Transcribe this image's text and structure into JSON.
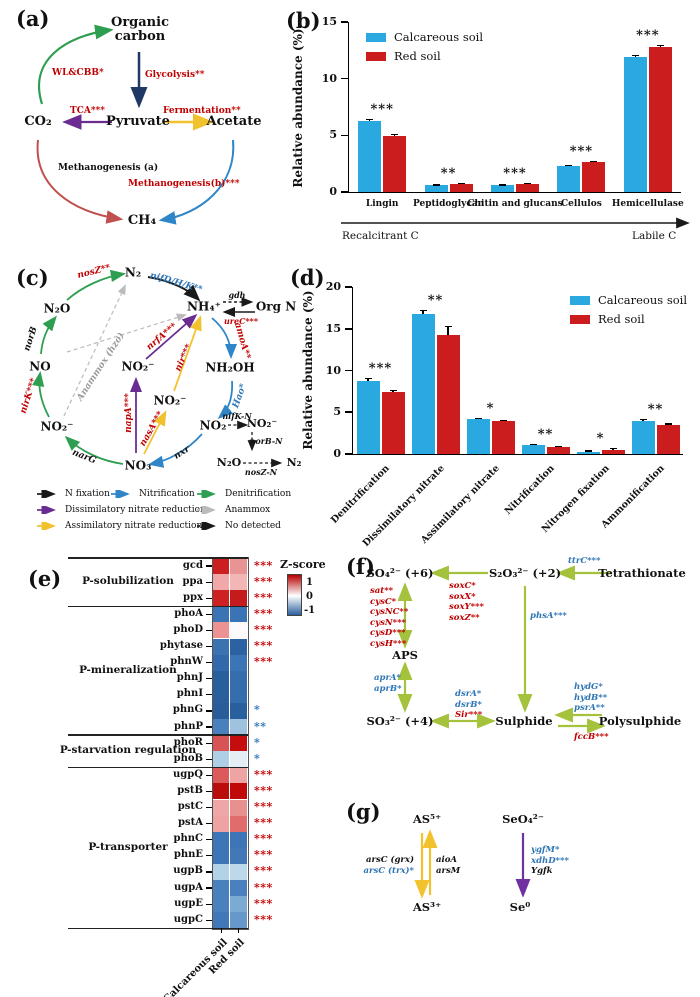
{
  "figure": {
    "background": "#FFFFFF"
  },
  "colors": {
    "calcareous_blue": "#29A9E0",
    "red_soil": "#CC1D1E",
    "sig_red": "#C00000",
    "sig_blue": "#2E75B6",
    "green_arrow": "#2E9E50",
    "navy_arrow": "#1F3864",
    "purple_arrow": "#6A2C91",
    "yellow_arrow": "#F2C12E",
    "brick_arrow": "#C0504D",
    "blue_arrow": "#2E86C8",
    "olive_arrow": "#A4C23C",
    "violet_arrow": "#7030A0",
    "anammox_gray": "#BBBBBB"
  },
  "panel_a": {
    "label": "(a)",
    "nodes": {
      "organic": "Organic\ncarbon",
      "pyruvate": "Pyruvate",
      "acetate": "Acetate",
      "co2": "CO₂",
      "ch4": "CH₄"
    },
    "edges": {
      "wl_cbb": "WL&CBB*",
      "glycolysis": "Glycolysis**",
      "tca": "TCA***",
      "fermentation": "Fermentation**",
      "methanogenesis_a": "Methanogenesis (a)",
      "methanogenesis_b": "Methanogenesis(b)***"
    }
  },
  "panel_b": {
    "label": "(b)"
  },
  "panel_c": {
    "label": "(c)",
    "nodes": {
      "n2": "N₂",
      "n2o": "N₂O",
      "no": "NO",
      "no2_left": "NO₂⁻",
      "no3": "NO₃",
      "no2_center": "NO₂⁻",
      "no2_center2": "NO₂⁻",
      "nh4": "NH₄⁺",
      "org_n": "Org N",
      "nh2oh": "NH₂OH",
      "no2_right": "NO₂",
      "no2_right2": "NO₂⁻",
      "n2o_small": "N₂O",
      "n2_small": "N₂"
    },
    "genes": {
      "nosZ": "nosZ**",
      "norB": "norB",
      "nirK": "nirK***",
      "narG": "narG",
      "nxr": "nxr",
      "hao": "Hao*",
      "amoA": "amoA**",
      "nifDHK": "nifD/H/K**",
      "gdh": "gdh",
      "ureC": "ureC***",
      "nrfA": "nrfA***",
      "nir": "nir***",
      "napA": "napA***",
      "nasA": "nasA***",
      "anammox": "Anammox (hzo)",
      "nifK_N": "nifK-N",
      "norB_N": "norB-N",
      "nosZ_N": "nosZ-N"
    },
    "legend": [
      {
        "label": "N fixation",
        "color": "#1A1A1A",
        "style": "solid"
      },
      {
        "label": "Nitrification",
        "color": "#2E86C8",
        "style": "solid"
      },
      {
        "label": "Denitrification",
        "color": "#2E9E50",
        "style": "solid"
      },
      {
        "label": "Dissimilatory nitrate reduction",
        "color": "#6A2C91",
        "style": "solid"
      },
      {
        "label": "Anammox",
        "color": "#BBBBBB",
        "style": "dashed"
      },
      {
        "label": "Assimilatory nitrate reduction",
        "color": "#F2C12E",
        "style": "solid"
      },
      {
        "label": "No detected",
        "color": "#1A1A1A",
        "style": "dashed"
      }
    ]
  },
  "panel_d": {
    "label": "(d)"
  },
  "panel_e": {
    "label": "(e)"
  },
  "panel_f": {
    "label": "(f)",
    "nodes": {
      "so4": "SO₄²⁻ (+6)",
      "s2o3": "S₂O₃²⁻ (+2)",
      "tetrathionate": "Tetrathionate",
      "aps": "APS",
      "so3": "SO₃²⁻ (+4)",
      "sulphide": "Sulphide",
      "polysulphide": "Polysulphide"
    },
    "genes": {
      "ttr": [
        {
          "t": "ttrC***",
          "c": "blue"
        }
      ],
      "sox": [
        {
          "t": "soxC*",
          "c": "red"
        },
        {
          "t": "soxX*",
          "c": "red"
        },
        {
          "t": "soxY***",
          "c": "red"
        },
        {
          "t": "soxZ**",
          "c": "red"
        }
      ],
      "phs": [
        {
          "t": "phsA***",
          "c": "blue"
        }
      ],
      "sat_cys": [
        {
          "t": "sat**",
          "c": "red"
        },
        {
          "t": "cysC*",
          "c": "red"
        },
        {
          "t": "cysNC**",
          "c": "red"
        },
        {
          "t": "cysN***",
          "c": "red"
        },
        {
          "t": "cysD***",
          "c": "red"
        },
        {
          "t": "cysH***",
          "c": "red"
        }
      ],
      "apr": [
        {
          "t": "aprA*",
          "c": "blue"
        },
        {
          "t": "aprB*",
          "c": "blue"
        }
      ],
      "dsr": [
        {
          "t": "dsrA*",
          "c": "blue"
        },
        {
          "t": "dsrB*",
          "c": "blue"
        },
        {
          "t": "Sir***",
          "c": "red"
        }
      ],
      "hyd": [
        {
          "t": "hydG*",
          "c": "blue"
        },
        {
          "t": "hydB**",
          "c": "blue"
        },
        {
          "t": "psrA**",
          "c": "blue"
        }
      ],
      "fcc": [
        {
          "t": "fccB***",
          "c": "red"
        }
      ]
    }
  },
  "panel_g": {
    "label": "(g)",
    "nodes": {
      "as5": "AS⁵⁺",
      "as3": "AS³⁺",
      "seo4": "SeO₄²⁻",
      "se0": "Se⁰"
    },
    "genes": {
      "ars_left": [
        {
          "t": "arsC (grx)",
          "c": "blk"
        },
        {
          "t": "arsC (trx)*",
          "c": "blue"
        }
      ],
      "ars_right": [
        {
          "t": "aioA",
          "c": "blk"
        },
        {
          "t": "arsM",
          "c": "blk"
        }
      ],
      "se": [
        {
          "t": "ygfM*",
          "c": "blue"
        },
        {
          "t": "xdhD***",
          "c": "blue"
        },
        {
          "t": "Ygfk",
          "c": "blk"
        }
      ]
    }
  },
  "chart_data": [
    {
      "id": "b",
      "type": "bar",
      "ylabel": "Relative abundance (%)",
      "ylim": [
        0,
        15
      ],
      "yticks": [
        0,
        5,
        10,
        15
      ],
      "categories": [
        "Lingin",
        "Peptidoglycan",
        "Chitin and glucans",
        "Cellulos",
        "Hemicellulase"
      ],
      "series": [
        {
          "name": "Calcareous soil",
          "color": "#29A9E0",
          "values": [
            6.3,
            0.6,
            0.6,
            2.3,
            11.9
          ],
          "errors": [
            0.15,
            0.06,
            0.06,
            0.1,
            0.15
          ]
        },
        {
          "name": "Red soil",
          "color": "#CC1D1E",
          "values": [
            4.9,
            0.7,
            0.75,
            2.65,
            12.8
          ],
          "errors": [
            0.2,
            0.06,
            0.06,
            0.1,
            0.15
          ]
        }
      ],
      "significance": [
        "***",
        "**",
        "***",
        "***",
        "***"
      ],
      "x_axis_annotation": {
        "left": "Recalcitrant C",
        "right": "Labile C"
      },
      "legend_position": "top-left",
      "grid": false
    },
    {
      "id": "d",
      "type": "bar",
      "ylabel": "Relative abundance (%)",
      "ylim": [
        0,
        20
      ],
      "yticks": [
        0,
        5,
        10,
        15,
        20
      ],
      "categories": [
        "Denitrification",
        "Dissimilatory nitrate",
        "Assimilatory nitrate",
        "Nitrification",
        "Nitrogen fixation",
        "Ammonification"
      ],
      "series": [
        {
          "name": "Calcareous soil",
          "color": "#29A9E0",
          "values": [
            8.8,
            16.8,
            4.2,
            1.1,
            0.3,
            4.0
          ],
          "errors": [
            0.25,
            0.45,
            0.12,
            0.12,
            0.1,
            0.2
          ]
        },
        {
          "name": "Red soil",
          "color": "#CC1D1E",
          "values": [
            7.4,
            14.2,
            3.9,
            0.8,
            0.5,
            3.5
          ],
          "errors": [
            0.3,
            1.1,
            0.15,
            0.12,
            0.18,
            0.15
          ]
        }
      ],
      "significance": [
        "***",
        "**",
        "*",
        "**",
        "*",
        "**"
      ],
      "legend_position": "top-right",
      "grid": false
    },
    {
      "id": "e",
      "type": "heatmap",
      "columns": [
        "Calcareous soil",
        "Red soil"
      ],
      "legend": {
        "title": "Z-score",
        "ticks": [
          "1",
          "0",
          "-1"
        ],
        "max_color": "#B60000",
        "mid_color": "#FFFFFF",
        "min_color": "#2B5F9E"
      },
      "groups": [
        {
          "name": "P-solubilization",
          "rows": [
            {
              "gene": "gcd",
              "z": [
                1.3,
                0.4
              ],
              "colors": [
                "#CC2020",
                "#E89494"
              ],
              "sig": "***",
              "sig_color": "red"
            },
            {
              "gene": "ppa",
              "z": [
                0.35,
                0.28
              ],
              "colors": [
                "#F0A8A8",
                "#F2B6B6"
              ],
              "sig": "***",
              "sig_color": "red"
            },
            {
              "gene": "ppx",
              "z": [
                1.3,
                1.4
              ],
              "colors": [
                "#CE2121",
                "#C41C1C"
              ],
              "sig": "***",
              "sig_color": "red"
            }
          ]
        },
        {
          "name": "P-mineralization",
          "rows": [
            {
              "gene": "phoA",
              "z": [
                -0.85,
                -0.85
              ],
              "colors": [
                "#3B74B4",
                "#3B74B4"
              ],
              "sig": "***",
              "sig_color": "red"
            },
            {
              "gene": "phoD",
              "z": [
                0.45,
                0.02
              ],
              "colors": [
                "#EC9292",
                "#FCFAFA"
              ],
              "sig": "***",
              "sig_color": "red"
            },
            {
              "gene": "phytase",
              "z": [
                -0.85,
                -1.05
              ],
              "colors": [
                "#3B72B0",
                "#2C62A2"
              ],
              "sig": "***",
              "sig_color": "red"
            },
            {
              "gene": "phnW",
              "z": [
                -0.95,
                -0.85
              ],
              "colors": [
                "#3269AA",
                "#3C75B5"
              ],
              "sig": "***",
              "sig_color": "red"
            },
            {
              "gene": "phnJ",
              "z": [
                -1.1,
                -0.9
              ],
              "colors": [
                "#2A5F9E",
                "#356DAD"
              ],
              "sig": "",
              "sig_color": ""
            },
            {
              "gene": "phnI",
              "z": [
                -1.1,
                -0.9
              ],
              "colors": [
                "#2A5F9E",
                "#356DAD"
              ],
              "sig": "",
              "sig_color": ""
            },
            {
              "gene": "phnG",
              "z": [
                -1.15,
                -1.1
              ],
              "colors": [
                "#285C9B",
                "#2A5F9E"
              ],
              "sig": "*",
              "sig_color": "blue"
            },
            {
              "gene": "phnP",
              "z": [
                -0.75,
                -0.35
              ],
              "colors": [
                "#4A80BE",
                "#9FC3DF"
              ],
              "sig": "**",
              "sig_color": "blue"
            }
          ]
        },
        {
          "name": "P-starvation regulation",
          "rows": [
            {
              "gene": "phoR",
              "z": [
                0.7,
                1.4
              ],
              "colors": [
                "#D85353",
                "#C60D0D"
              ],
              "sig": "*",
              "sig_color": "blue"
            },
            {
              "gene": "phoB",
              "z": [
                -0.3,
                -0.1
              ],
              "colors": [
                "#AECFE6",
                "#E3EEF5"
              ],
              "sig": "*",
              "sig_color": "blue"
            }
          ]
        },
        {
          "name": "P-transporter",
          "rows": [
            {
              "gene": "ugpQ",
              "z": [
                0.65,
                0.35
              ],
              "colors": [
                "#DC5A5A",
                "#EFA4A4"
              ],
              "sig": "***",
              "sig_color": "red"
            },
            {
              "gene": "pstB",
              "z": [
                1.5,
                1.45
              ],
              "colors": [
                "#BB0C0C",
                "#C00A0A"
              ],
              "sig": "***",
              "sig_color": "red"
            },
            {
              "gene": "pstC",
              "z": [
                0.33,
                0.45
              ],
              "colors": [
                "#EFA6A6",
                "#E89090"
              ],
              "sig": "***",
              "sig_color": "red"
            },
            {
              "gene": "pstA",
              "z": [
                0.35,
                0.55
              ],
              "colors": [
                "#EFA2A2",
                "#E06C6C"
              ],
              "sig": "***",
              "sig_color": "red"
            },
            {
              "gene": "phnC",
              "z": [
                -0.85,
                -0.85
              ],
              "colors": [
                "#3C76B6",
                "#3C76B6"
              ],
              "sig": "***",
              "sig_color": "red"
            },
            {
              "gene": "phnE",
              "z": [
                -0.85,
                -0.8
              ],
              "colors": [
                "#3C76B6",
                "#4278B8"
              ],
              "sig": "***",
              "sig_color": "red"
            },
            {
              "gene": "ugpB",
              "z": [
                -0.28,
                -0.25
              ],
              "colors": [
                "#B2D2E8",
                "#BCD8EA"
              ],
              "sig": "***",
              "sig_color": "red"
            },
            {
              "gene": "ugpA",
              "z": [
                -0.75,
                -0.75
              ],
              "colors": [
                "#4A80BE",
                "#4A80BE"
              ],
              "sig": "***",
              "sig_color": "red"
            },
            {
              "gene": "ugpE",
              "z": [
                -0.75,
                -0.55
              ],
              "colors": [
                "#4A80BE",
                "#7BABD3"
              ],
              "sig": "***",
              "sig_color": "red"
            },
            {
              "gene": "ugpC",
              "z": [
                -0.8,
                -0.6
              ],
              "colors": [
                "#4078B8",
                "#6699CA"
              ],
              "sig": "***",
              "sig_color": "red"
            }
          ]
        }
      ]
    }
  ]
}
